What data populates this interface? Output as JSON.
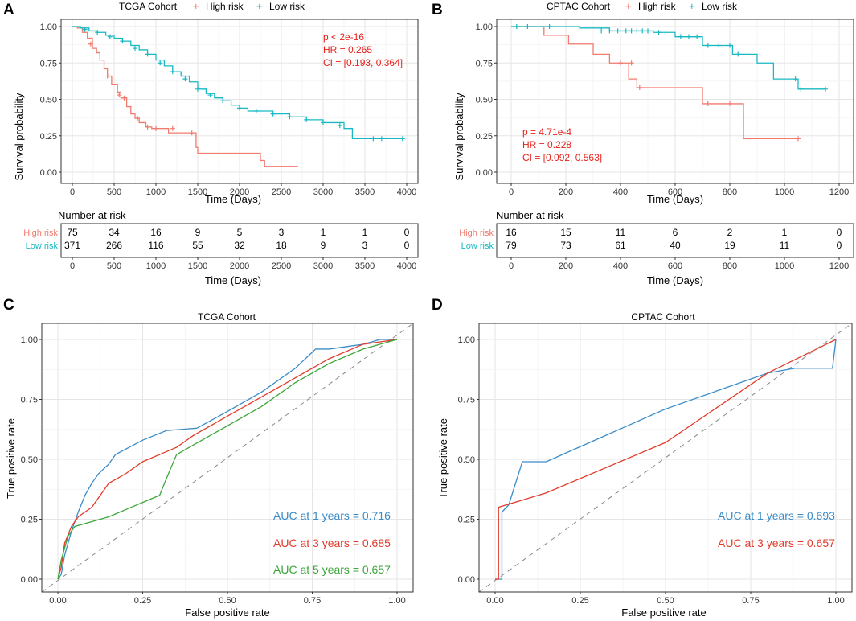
{
  "panels": {
    "A": {
      "letter": "A",
      "title": "TCGA Cohort",
      "legend_high": "High risk",
      "legend_low": "Low risk",
      "ylabel": "Survival probability",
      "xlabel": "Time (Days)",
      "stats": [
        "p < 2e-16",
        "HR = 0.265",
        "CI = [0.193, 0.364]"
      ],
      "risk_title": "Number at risk",
      "risk_xlabel": "Time (Days)",
      "risk_rows": [
        {
          "label": "High risk",
          "values": [
            "75",
            "34",
            "16",
            "9",
            "5",
            "3",
            "1",
            "1",
            "0"
          ]
        },
        {
          "label": "Low risk",
          "values": [
            "371",
            "266",
            "116",
            "55",
            "32",
            "18",
            "9",
            "3",
            "0"
          ]
        }
      ]
    },
    "B": {
      "letter": "B",
      "title": "CPTAC Cohort",
      "legend_high": "High risk",
      "legend_low": "Low risk",
      "ylabel": "Survival probability",
      "xlabel": "Time (Days)",
      "stats": [
        "p  = 4.71e-4",
        "HR = 0.228",
        "CI = [0.092, 0.563]"
      ],
      "risk_title": "Number at risk",
      "risk_xlabel": "Time (Days)",
      "risk_rows": [
        {
          "label": "High risk",
          "values": [
            "16",
            "15",
            "11",
            "6",
            "2",
            "1",
            "0"
          ]
        },
        {
          "label": "Low risk",
          "values": [
            "79",
            "73",
            "61",
            "40",
            "19",
            "11",
            "0"
          ]
        }
      ]
    },
    "C": {
      "letter": "C",
      "title": "TCGA Cohort",
      "xlabel": "False positive rate",
      "ylabel": "True positive rate",
      "auc_labels": [
        "AUC at 1 years = 0.716",
        "AUC at 3 years = 0.685",
        "AUC at 5 years = 0.657"
      ]
    },
    "D": {
      "letter": "D",
      "title": "CPTAC Cohort",
      "xlabel": "False positive rate",
      "ylabel": "True positive rate",
      "auc_labels": [
        "AUC at 1 years = 0.693",
        "AUC at 3 years = 0.657"
      ]
    }
  },
  "colors": {
    "high": "#f07b6e",
    "low": "#19b9c3",
    "roc1": "#3a8cc8",
    "roc3": "#e23b2b",
    "roc5": "#3ca63a",
    "stat_red": "#e8221c"
  },
  "chart_data": [
    {
      "id": "A",
      "type": "line",
      "title": "TCGA Cohort",
      "xlabel": "Time (Days)",
      "ylabel": "Survival probability",
      "xlim": [
        0,
        4000
      ],
      "ylim": [
        0,
        1
      ],
      "xticks": [
        0,
        500,
        1000,
        1500,
        2000,
        2500,
        3000,
        3500,
        4000
      ],
      "yticks": [
        0,
        0.25,
        0.5,
        0.75,
        1.0
      ],
      "ytick_labels": [
        "0.00",
        "0.25",
        "0.50",
        "0.75",
        "1.00"
      ],
      "series": [
        {
          "name": "High risk",
          "color": "#f07b6e",
          "x": [
            0,
            60,
            120,
            180,
            240,
            290,
            330,
            380,
            420,
            470,
            540,
            580,
            650,
            700,
            750,
            800,
            880,
            950,
            1000,
            1150,
            1400,
            1480,
            1500,
            2000,
            2250,
            2300,
            2700
          ],
          "y": [
            1.0,
            0.99,
            0.96,
            0.92,
            0.85,
            0.82,
            0.77,
            0.71,
            0.66,
            0.6,
            0.55,
            0.51,
            0.45,
            0.4,
            0.37,
            0.34,
            0.31,
            0.3,
            0.3,
            0.27,
            0.27,
            0.17,
            0.13,
            0.13,
            0.08,
            0.04,
            0.04
          ],
          "censor_x": [
            220,
            420,
            560,
            620,
            780,
            900,
            1000,
            1200,
            1430
          ],
          "censor_y": [
            0.88,
            0.66,
            0.53,
            0.51,
            0.37,
            0.31,
            0.3,
            0.3,
            0.27
          ]
        },
        {
          "name": "Low risk",
          "color": "#19b9c3",
          "x": [
            0,
            100,
            200,
            300,
            400,
            500,
            600,
            700,
            800,
            900,
            1000,
            1100,
            1200,
            1300,
            1400,
            1500,
            1600,
            1700,
            1800,
            1900,
            2000,
            2100,
            2200,
            2400,
            2600,
            2800,
            3000,
            3250,
            3350,
            3950
          ],
          "y": [
            1.0,
            0.99,
            0.97,
            0.96,
            0.94,
            0.92,
            0.9,
            0.87,
            0.84,
            0.81,
            0.77,
            0.73,
            0.69,
            0.66,
            0.62,
            0.57,
            0.54,
            0.51,
            0.49,
            0.46,
            0.44,
            0.42,
            0.42,
            0.4,
            0.38,
            0.36,
            0.34,
            0.3,
            0.23,
            0.23
          ],
          "censor_x": [
            150,
            300,
            450,
            600,
            750,
            900,
            1050,
            1200,
            1350,
            1500,
            1650,
            1800,
            2000,
            2200,
            2400,
            2600,
            2800,
            3000,
            3200,
            3600,
            3700,
            3950
          ],
          "censor_y": [
            0.98,
            0.96,
            0.93,
            0.9,
            0.85,
            0.81,
            0.75,
            0.69,
            0.64,
            0.57,
            0.53,
            0.49,
            0.44,
            0.42,
            0.4,
            0.38,
            0.36,
            0.34,
            0.32,
            0.23,
            0.23,
            0.23
          ]
        }
      ]
    },
    {
      "id": "B",
      "type": "line",
      "title": "CPTAC Cohort",
      "xlabel": "Time (Days)",
      "ylabel": "Survival probability",
      "xlim": [
        0,
        1200
      ],
      "ylim": [
        0,
        1
      ],
      "xticks": [
        0,
        200,
        400,
        600,
        800,
        1000,
        1200
      ],
      "yticks": [
        0,
        0.25,
        0.5,
        0.75,
        1.0
      ],
      "ytick_labels": [
        "0.00",
        "0.25",
        "0.50",
        "0.75",
        "1.00"
      ],
      "series": [
        {
          "name": "High risk",
          "color": "#f07b6e",
          "x": [
            0,
            120,
            210,
            300,
            360,
            430,
            460,
            700,
            850,
            1060
          ],
          "y": [
            1.0,
            0.94,
            0.88,
            0.81,
            0.75,
            0.64,
            0.58,
            0.47,
            0.23,
            0.23
          ],
          "censor_x": [
            400,
            440,
            470,
            720,
            800,
            1050
          ],
          "censor_y": [
            0.75,
            0.75,
            0.58,
            0.47,
            0.47,
            0.23
          ]
        },
        {
          "name": "Low risk",
          "color": "#19b9c3",
          "x": [
            0,
            250,
            360,
            520,
            600,
            700,
            810,
            900,
            960,
            1050,
            1150
          ],
          "y": [
            1.0,
            0.99,
            0.97,
            0.96,
            0.93,
            0.87,
            0.81,
            0.75,
            0.64,
            0.57,
            0.57
          ],
          "censor_x": [
            20,
            60,
            140,
            330,
            360,
            390,
            420,
            440,
            460,
            480,
            500,
            540,
            620,
            650,
            680,
            720,
            760,
            800,
            830,
            1040,
            1060,
            1150
          ],
          "censor_y": [
            1.0,
            1.0,
            1.0,
            0.97,
            0.97,
            0.97,
            0.97,
            0.97,
            0.97,
            0.97,
            0.97,
            0.96,
            0.93,
            0.93,
            0.93,
            0.87,
            0.87,
            0.87,
            0.81,
            0.64,
            0.57,
            0.57
          ]
        }
      ]
    },
    {
      "id": "C",
      "type": "line",
      "title": "TCGA Cohort",
      "xlabel": "False positive rate",
      "ylabel": "True positive rate",
      "xlim": [
        0,
        1
      ],
      "ylim": [
        0,
        1
      ],
      "xticks": [
        0,
        0.25,
        0.5,
        0.75,
        1.0
      ],
      "xtick_labels": [
        "0.00",
        "0.25",
        "0.50",
        "0.75",
        "1.00"
      ],
      "yticks": [
        0,
        0.25,
        0.5,
        0.75,
        1.0
      ],
      "ytick_labels": [
        "0.00",
        "0.25",
        "0.50",
        "0.75",
        "1.00"
      ],
      "series": [
        {
          "name": "AUC at 1 years = 0.716",
          "color": "#3a8cc8",
          "x": [
            0,
            0.01,
            0.02,
            0.04,
            0.06,
            0.08,
            0.1,
            0.12,
            0.15,
            0.17,
            0.25,
            0.32,
            0.41,
            0.5,
            0.6,
            0.7,
            0.76,
            0.8,
            0.85,
            0.9,
            0.95,
            1.0
          ],
          "y": [
            0,
            0.02,
            0.1,
            0.2,
            0.28,
            0.35,
            0.4,
            0.44,
            0.48,
            0.52,
            0.58,
            0.62,
            0.63,
            0.7,
            0.78,
            0.88,
            0.96,
            0.96,
            0.97,
            0.98,
            1.0,
            1.0
          ]
        },
        {
          "name": "AUC at 3 years = 0.685",
          "color": "#e23b2b",
          "x": [
            0,
            0.01,
            0.02,
            0.04,
            0.06,
            0.1,
            0.15,
            0.2,
            0.25,
            0.3,
            0.35,
            0.4,
            0.5,
            0.6,
            0.7,
            0.8,
            0.9,
            1.0
          ],
          "y": [
            0,
            0.05,
            0.15,
            0.22,
            0.26,
            0.3,
            0.4,
            0.44,
            0.49,
            0.52,
            0.55,
            0.6,
            0.68,
            0.76,
            0.84,
            0.92,
            0.98,
            1.0
          ]
        },
        {
          "name": "AUC at 5 years = 0.657",
          "color": "#3ca63a",
          "x": [
            0,
            0.01,
            0.03,
            0.05,
            0.1,
            0.15,
            0.2,
            0.25,
            0.3,
            0.32,
            0.35,
            0.4,
            0.5,
            0.6,
            0.7,
            0.8,
            0.9,
            1.0
          ],
          "y": [
            0,
            0.08,
            0.18,
            0.22,
            0.24,
            0.26,
            0.29,
            0.32,
            0.35,
            0.42,
            0.52,
            0.56,
            0.64,
            0.72,
            0.82,
            0.9,
            0.96,
            1.0
          ]
        }
      ]
    },
    {
      "id": "D",
      "type": "line",
      "title": "CPTAC Cohort",
      "xlabel": "False positive rate",
      "ylabel": "True positive rate",
      "xlim": [
        0,
        1
      ],
      "ylim": [
        0,
        1
      ],
      "xticks": [
        0,
        0.25,
        0.5,
        0.75,
        1.0
      ],
      "xtick_labels": [
        "0.00",
        "0.25",
        "0.50",
        "0.75",
        "1.00"
      ],
      "yticks": [
        0,
        0.25,
        0.5,
        0.75,
        1.0
      ],
      "ytick_labels": [
        "0.00",
        "0.25",
        "0.50",
        "0.75",
        "1.00"
      ],
      "series": [
        {
          "name": "AUC at 1 years = 0.693",
          "color": "#3a8cc8",
          "x": [
            0,
            0.02,
            0.02,
            0.04,
            0.08,
            0.15,
            0.5,
            0.8,
            0.88,
            0.99,
            1.0
          ],
          "y": [
            0,
            0,
            0.28,
            0.31,
            0.49,
            0.49,
            0.71,
            0.86,
            0.88,
            0.88,
            1.0
          ]
        },
        {
          "name": "AUC at 3 years = 0.657",
          "color": "#e23b2b",
          "x": [
            0,
            0.01,
            0.01,
            0.15,
            0.5,
            0.8,
            1.0
          ],
          "y": [
            0,
            0,
            0.3,
            0.36,
            0.57,
            0.86,
            1.0
          ]
        }
      ]
    }
  ]
}
